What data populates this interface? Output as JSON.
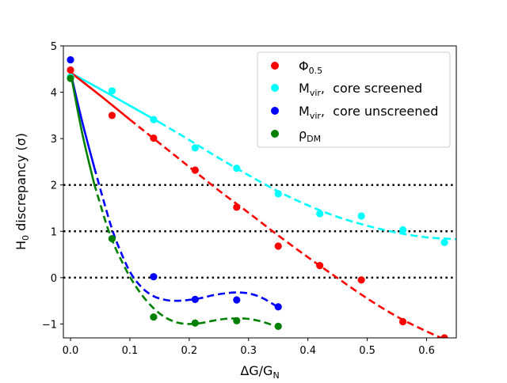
{
  "chart_data": {
    "type": "scatter",
    "title": "",
    "xlabel": {
      "main": "ΔG/G",
      "sub": "N"
    },
    "ylabel": {
      "pre": "H",
      "sub": "0",
      "post": " discrepancy (σ)"
    },
    "xlim": [
      -0.012,
      0.65
    ],
    "ylim": [
      -1.3,
      5.0
    ],
    "x_ticks": [
      0.0,
      0.1,
      0.2,
      0.3,
      0.4,
      0.5,
      0.6
    ],
    "x_tick_labels": [
      "0.0",
      "0.1",
      "0.2",
      "0.3",
      "0.4",
      "0.5",
      "0.6"
    ],
    "y_ticks": [
      -1,
      0,
      1,
      2,
      3,
      4,
      5
    ],
    "y_tick_labels": [
      "−1",
      "0",
      "1",
      "2",
      "3",
      "4",
      "5"
    ],
    "reference_lines": [
      2,
      1,
      0
    ],
    "legend_position": "top-right",
    "series": [
      {
        "name": {
          "main": "Φ",
          "sub": "0.5"
        },
        "color": "#ff0000",
        "x": [
          0.0,
          0.07,
          0.14,
          0.21,
          0.28,
          0.35,
          0.42,
          0.49,
          0.56,
          0.63
        ],
        "y": [
          4.48,
          3.5,
          3.01,
          2.32,
          1.52,
          0.68,
          0.26,
          -0.05,
          -0.95,
          -1.3
        ],
        "fit_x": [
          0.0,
          0.05,
          0.1,
          0.15,
          0.2,
          0.25,
          0.3,
          0.35,
          0.4,
          0.45,
          0.5,
          0.55,
          0.6,
          0.65
        ],
        "fit_y": [
          4.43,
          3.93,
          3.41,
          2.9,
          2.39,
          1.88,
          1.4,
          0.91,
          0.44,
          -0.01,
          -0.45,
          -0.84,
          -1.16,
          -1.44
        ],
        "solid_until": 0.095
      },
      {
        "name": {
          "main": "M",
          "sub": "vir",
          "post": ",  core screened"
        },
        "color": "#00ffff",
        "x": [
          0.0,
          0.07,
          0.14,
          0.21,
          0.28,
          0.35,
          0.42,
          0.49,
          0.56,
          0.63
        ],
        "y": [
          4.33,
          4.03,
          3.41,
          2.8,
          2.36,
          1.81,
          1.38,
          1.33,
          1.03,
          0.76
        ],
        "fit_x": [
          0.0,
          0.05,
          0.1,
          0.15,
          0.2,
          0.25,
          0.3,
          0.35,
          0.4,
          0.45,
          0.5,
          0.55,
          0.6,
          0.65
        ],
        "fit_y": [
          4.42,
          4.07,
          3.71,
          3.35,
          2.97,
          2.58,
          2.21,
          1.86,
          1.56,
          1.31,
          1.12,
          0.97,
          0.87,
          0.83
        ],
        "solid_until": 0.145
      },
      {
        "name": {
          "main": "M",
          "sub": "vir",
          "post": ",  core unscreened"
        },
        "color": "#0000ff",
        "x": [
          0.0,
          0.14,
          0.21,
          0.28,
          0.35
        ],
        "y": [
          4.7,
          0.02,
          -0.47,
          -0.48,
          -0.63
        ],
        "fit_x": [
          0.0,
          0.02,
          0.04,
          0.06,
          0.07,
          0.08,
          0.1,
          0.12,
          0.14,
          0.16,
          0.18,
          0.2,
          0.22,
          0.24,
          0.26,
          0.28,
          0.3,
          0.32,
          0.34,
          0.35
        ],
        "fit_y": [
          4.43,
          3.35,
          2.38,
          1.47,
          1.05,
          0.7,
          0.13,
          -0.21,
          -0.4,
          -0.48,
          -0.5,
          -0.48,
          -0.44,
          -0.38,
          -0.34,
          -0.32,
          -0.34,
          -0.42,
          -0.56,
          -0.65
        ],
        "solid_until": 0.03
      },
      {
        "name": {
          "main": "ρ",
          "sub": "DM"
        },
        "color": "#008000",
        "x": [
          0.0,
          0.07,
          0.14,
          0.21,
          0.28,
          0.35
        ],
        "y": [
          4.3,
          0.84,
          -0.85,
          -0.98,
          -0.93,
          -1.05
        ],
        "fit_x": [
          0.0,
          0.02,
          0.04,
          0.06,
          0.07,
          0.08,
          0.1,
          0.12,
          0.14,
          0.16,
          0.18,
          0.2,
          0.22,
          0.24,
          0.26,
          0.28,
          0.3,
          0.32,
          0.34,
          0.35
        ],
        "fit_y": [
          4.43,
          3.1,
          2.02,
          1.17,
          0.82,
          0.52,
          0.02,
          -0.37,
          -0.66,
          -0.86,
          -0.97,
          -1.0,
          -0.98,
          -0.93,
          -0.89,
          -0.88,
          -0.89,
          -0.94,
          -1.02,
          -1.07
        ],
        "solid_until": 0.035
      }
    ]
  }
}
